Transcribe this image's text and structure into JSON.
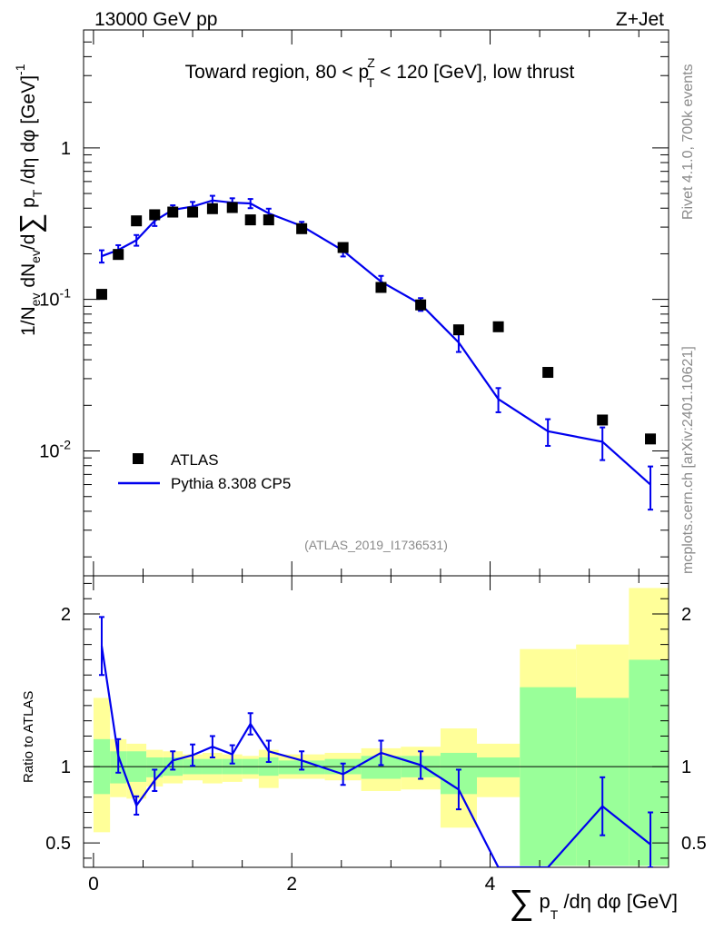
{
  "chart_data": {
    "type": "scatter",
    "header_left": "13000 GeV pp",
    "header_right": "Z+Jet",
    "title_pre": "Toward region, 80 < p",
    "title_sup": "Z",
    "title_sub": "T",
    "title_post": " < 120 [GeV], low thrust",
    "ylabel_main": "1/N_ev dN_ev/d∑ p_T /dη dφ  [GeV]^-1",
    "ylabel_ratio": "Ratio to ATLAS",
    "xlabel": "∑ p_T /dη dφ [GeV]",
    "side_text_top": "Rivet 4.1.0,  700k events",
    "side_text_bottom": "mcplots.cern.ch [arXiv:2401.10621]",
    "analysis_tag": "(ATLAS_2019_I1736531)",
    "yscale": "log",
    "ylim": [
      0.0015,
      6
    ],
    "xlim": [
      -0.1,
      5.8
    ],
    "ratio_ylim": [
      0.34,
      2.25
    ],
    "y_ticks": [
      {
        "v": 1,
        "label": "1"
      },
      {
        "v": 0.1,
        "label": "10^-1"
      },
      {
        "v": 0.01,
        "label": "10^-2"
      }
    ],
    "x_ticks": [
      {
        "v": 0,
        "label": "0"
      },
      {
        "v": 2,
        "label": "2"
      },
      {
        "v": 4,
        "label": "4"
      }
    ],
    "ratio_ticks": [
      {
        "v": 0.5,
        "label": "0.5"
      },
      {
        "v": 1,
        "label": "1"
      },
      {
        "v": 2,
        "label": "2"
      }
    ],
    "legend": [
      {
        "name": "ATLAS",
        "marker": "square",
        "color": "#000000"
      },
      {
        "name": "Pythia 8.308 CP5",
        "marker": "line",
        "color": "#0000ee"
      }
    ],
    "series": [
      {
        "name": "ATLAS",
        "x": [
          0.083,
          0.25,
          0.433,
          0.617,
          0.8,
          1.0,
          1.2,
          1.4,
          1.583,
          1.767,
          2.1,
          2.517,
          2.9,
          3.3,
          3.683,
          4.083,
          4.583,
          5.133,
          5.617
        ],
        "y": [
          0.108,
          0.198,
          0.33,
          0.362,
          0.377,
          0.377,
          0.397,
          0.404,
          0.335,
          0.335,
          0.293,
          0.22,
          0.12,
          0.092,
          0.063,
          0.066,
          0.033,
          0.016,
          0.012
        ]
      },
      {
        "name": "Pythia 8.308 CP5",
        "x": [
          0.083,
          0.25,
          0.433,
          0.617,
          0.8,
          1.0,
          1.2,
          1.4,
          1.583,
          1.767,
          2.1,
          2.517,
          2.9,
          3.3,
          3.683,
          4.083,
          4.583,
          5.133,
          5.617
        ],
        "y": [
          0.193,
          0.212,
          0.246,
          0.33,
          0.39,
          0.41,
          0.45,
          0.435,
          0.43,
          0.37,
          0.305,
          0.21,
          0.131,
          0.093,
          0.052,
          0.022,
          0.0135,
          0.0115,
          0.006
        ],
        "err": [
          0.018,
          0.016,
          0.02,
          0.025,
          0.028,
          0.03,
          0.033,
          0.03,
          0.03,
          0.027,
          0.02,
          0.018,
          0.012,
          0.009,
          0.007,
          0.004,
          0.0027,
          0.0028,
          0.0019
        ]
      }
    ],
    "ratio": {
      "x": [
        0.083,
        0.25,
        0.433,
        0.617,
        0.8,
        1.0,
        1.2,
        1.4,
        1.583,
        1.767,
        2.1,
        2.517,
        2.9,
        3.3,
        3.683,
        4.083,
        4.583,
        5.133,
        5.617
      ],
      "y": [
        1.79,
        1.07,
        0.745,
        0.91,
        1.04,
        1.075,
        1.13,
        1.08,
        1.28,
        1.1,
        1.04,
        0.95,
        1.09,
        1.01,
        0.85,
        0.33,
        0.33,
        0.74,
        0.49
      ],
      "err": [
        0.19,
        0.11,
        0.06,
        0.07,
        0.06,
        0.07,
        0.07,
        0.06,
        0.07,
        0.07,
        0.06,
        0.07,
        0.08,
        0.09,
        0.13,
        0.05,
        0.15,
        0.19,
        0.21
      ],
      "bands": [
        {
          "x0": 0.0,
          "x1": 0.167,
          "g": [
            0.82,
            1.18
          ],
          "yel": [
            0.57,
            1.45
          ]
        },
        {
          "x0": 0.167,
          "x1": 0.333,
          "g": [
            0.89,
            1.1
          ],
          "yel": [
            0.8,
            1.18
          ]
        },
        {
          "x0": 0.333,
          "x1": 0.533,
          "g": [
            0.9,
            1.1
          ],
          "yel": [
            0.79,
            1.15
          ]
        },
        {
          "x0": 0.533,
          "x1": 0.7,
          "g": [
            0.93,
            1.06
          ],
          "yel": [
            0.87,
            1.11
          ]
        },
        {
          "x0": 0.7,
          "x1": 0.9,
          "g": [
            0.94,
            1.06
          ],
          "yel": [
            0.89,
            1.1
          ]
        },
        {
          "x0": 0.9,
          "x1": 1.1,
          "g": [
            0.95,
            1.05
          ],
          "yel": [
            0.91,
            1.08
          ]
        },
        {
          "x0": 1.1,
          "x1": 1.3,
          "g": [
            0.95,
            1.05
          ],
          "yel": [
            0.89,
            1.09
          ]
        },
        {
          "x0": 1.3,
          "x1": 1.5,
          "g": [
            0.95,
            1.05
          ],
          "yel": [
            0.9,
            1.08
          ]
        },
        {
          "x0": 1.5,
          "x1": 1.667,
          "g": [
            0.95,
            1.05
          ],
          "yel": [
            0.92,
            1.07
          ]
        },
        {
          "x0": 1.667,
          "x1": 1.867,
          "g": [
            0.94,
            1.06
          ],
          "yel": [
            0.86,
            1.11
          ]
        },
        {
          "x0": 1.867,
          "x1": 2.333,
          "g": [
            0.95,
            1.04
          ],
          "yel": [
            0.92,
            1.08
          ]
        },
        {
          "x0": 2.333,
          "x1": 2.7,
          "g": [
            0.95,
            1.05
          ],
          "yel": [
            0.91,
            1.09
          ]
        },
        {
          "x0": 2.7,
          "x1": 3.1,
          "g": [
            0.92,
            1.07
          ],
          "yel": [
            0.84,
            1.12
          ]
        },
        {
          "x0": 3.1,
          "x1": 3.5,
          "g": [
            0.93,
            1.07
          ],
          "yel": [
            0.85,
            1.13
          ]
        },
        {
          "x0": 3.5,
          "x1": 3.867,
          "g": [
            0.82,
            1.09
          ],
          "yel": [
            0.6,
            1.25
          ]
        },
        {
          "x0": 3.867,
          "x1": 4.3,
          "g": [
            0.93,
            1.06
          ],
          "yel": [
            0.8,
            1.15
          ]
        },
        {
          "x0": 4.3,
          "x1": 4.867,
          "g": [
            0.35,
            1.52
          ],
          "yel": [
            0.35,
            1.77
          ]
        },
        {
          "x0": 4.867,
          "x1": 5.4,
          "g": [
            0.35,
            1.45
          ],
          "yel": [
            0.35,
            1.8
          ]
        },
        {
          "x0": 5.4,
          "x1": 5.8,
          "g": [
            0.35,
            1.7
          ],
          "yel": [
            0.35,
            2.17
          ]
        }
      ]
    }
  }
}
